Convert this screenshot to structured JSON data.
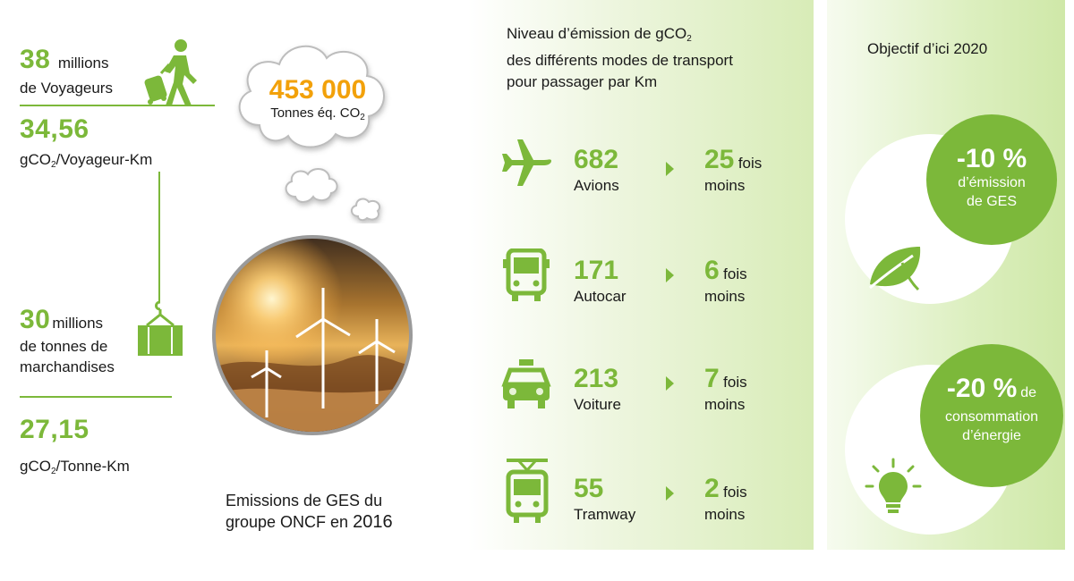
{
  "colors": {
    "green": "#7cb83a",
    "orange": "#f2a10a"
  },
  "left": {
    "voyageurs_num": "38",
    "voyageurs_unit": "millions",
    "voyageurs_label": "de Voyageurs",
    "gco2_voy_num": "34,56",
    "gco2_voy_label_pre": "gCO",
    "gco2_voy_label_sub": "2",
    "gco2_voy_label_post": "/Voyageur-Km",
    "tonnes_num": "30",
    "tonnes_unit": "millions",
    "tonnes_label_1": "de tonnes de",
    "tonnes_label_2": "marchandises",
    "gco2_t_num": "27,15",
    "gco2_t_label_pre": "gCO",
    "gco2_t_label_sub": "2",
    "gco2_t_label_post": "/Tonne-Km"
  },
  "cloud": {
    "value": "453 000",
    "label_pre": "Tonnes éq. CO",
    "label_sub": "2"
  },
  "photo_caption": {
    "line1": "Emissions de GES du",
    "line2_pre": "groupe ONCF en ",
    "line2_year": "2016"
  },
  "middle": {
    "title_line1_pre": "Niveau d’émission de gCO",
    "title_line1_sub": "2",
    "title_line2": "des différents modes de transport",
    "title_line3": "pour passager par Km",
    "modes": [
      {
        "icon": "airplane-icon",
        "value": "682",
        "name": "Avions",
        "times": "25",
        "fois": "fois",
        "moins": "moins"
      },
      {
        "icon": "bus-icon",
        "value": "171",
        "name": "Autocar",
        "times": "6",
        "fois": "fois",
        "moins": "moins"
      },
      {
        "icon": "taxi-icon",
        "value": "213",
        "name": "Voiture",
        "times": "7",
        "fois": "fois",
        "moins": "moins"
      },
      {
        "icon": "tram-icon",
        "value": "55",
        "name": "Tramway",
        "times": "2",
        "fois": "fois",
        "moins": "moins"
      }
    ]
  },
  "right": {
    "title": "Objectif d’ici 2020",
    "goal1_value": "-10 %",
    "goal1_line1": "d’émission",
    "goal1_line2": "de GES",
    "goal2_value": "-20 %",
    "goal2_de": "de",
    "goal2_line1": "consommation",
    "goal2_line2": "d’énergie"
  }
}
